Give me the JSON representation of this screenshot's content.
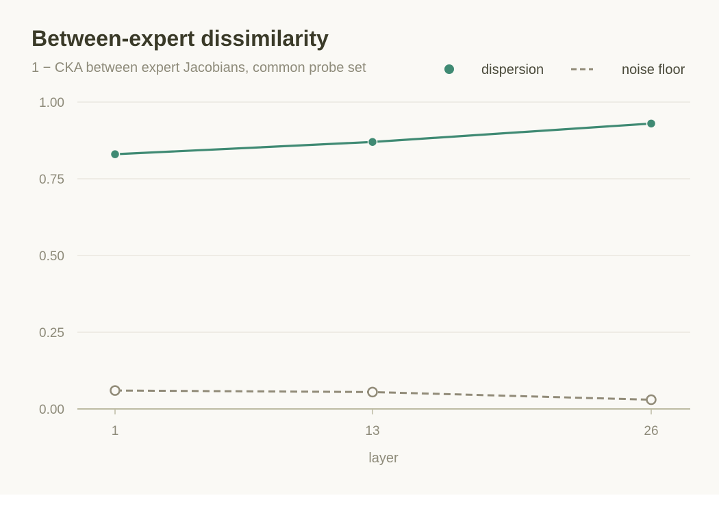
{
  "title": "Between-expert dissimilarity",
  "subtitle": "1 − CKA between expert Jacobians, common probe set",
  "colors": {
    "dispersion": "#3f8a73",
    "noise_floor": "#918b78",
    "grid": "#e6e4dc",
    "baseline": "#bdbba3",
    "background": "#faf9f5"
  },
  "chart_data": {
    "type": "line",
    "title": "Between-expert dissimilarity",
    "subtitle": "1 − CKA between expert Jacobians, common probe set",
    "xlabel": "layer",
    "ylabel": "",
    "x": [
      1,
      13,
      26
    ],
    "x_tick_labels": [
      "1",
      "13",
      "26"
    ],
    "y_tick_labels": [
      "0.00",
      "0.25",
      "0.50",
      "0.75",
      "1.00"
    ],
    "ylim": [
      0,
      1
    ],
    "grid": true,
    "legend_position": "top-right",
    "series": [
      {
        "name": "dispersion",
        "values": [
          0.83,
          0.87,
          0.93
        ],
        "style": "solid",
        "marker": "filled-circle"
      },
      {
        "name": "noise floor",
        "values": [
          0.06,
          0.055,
          0.03
        ],
        "style": "dashed",
        "marker": "open-circle"
      }
    ]
  }
}
